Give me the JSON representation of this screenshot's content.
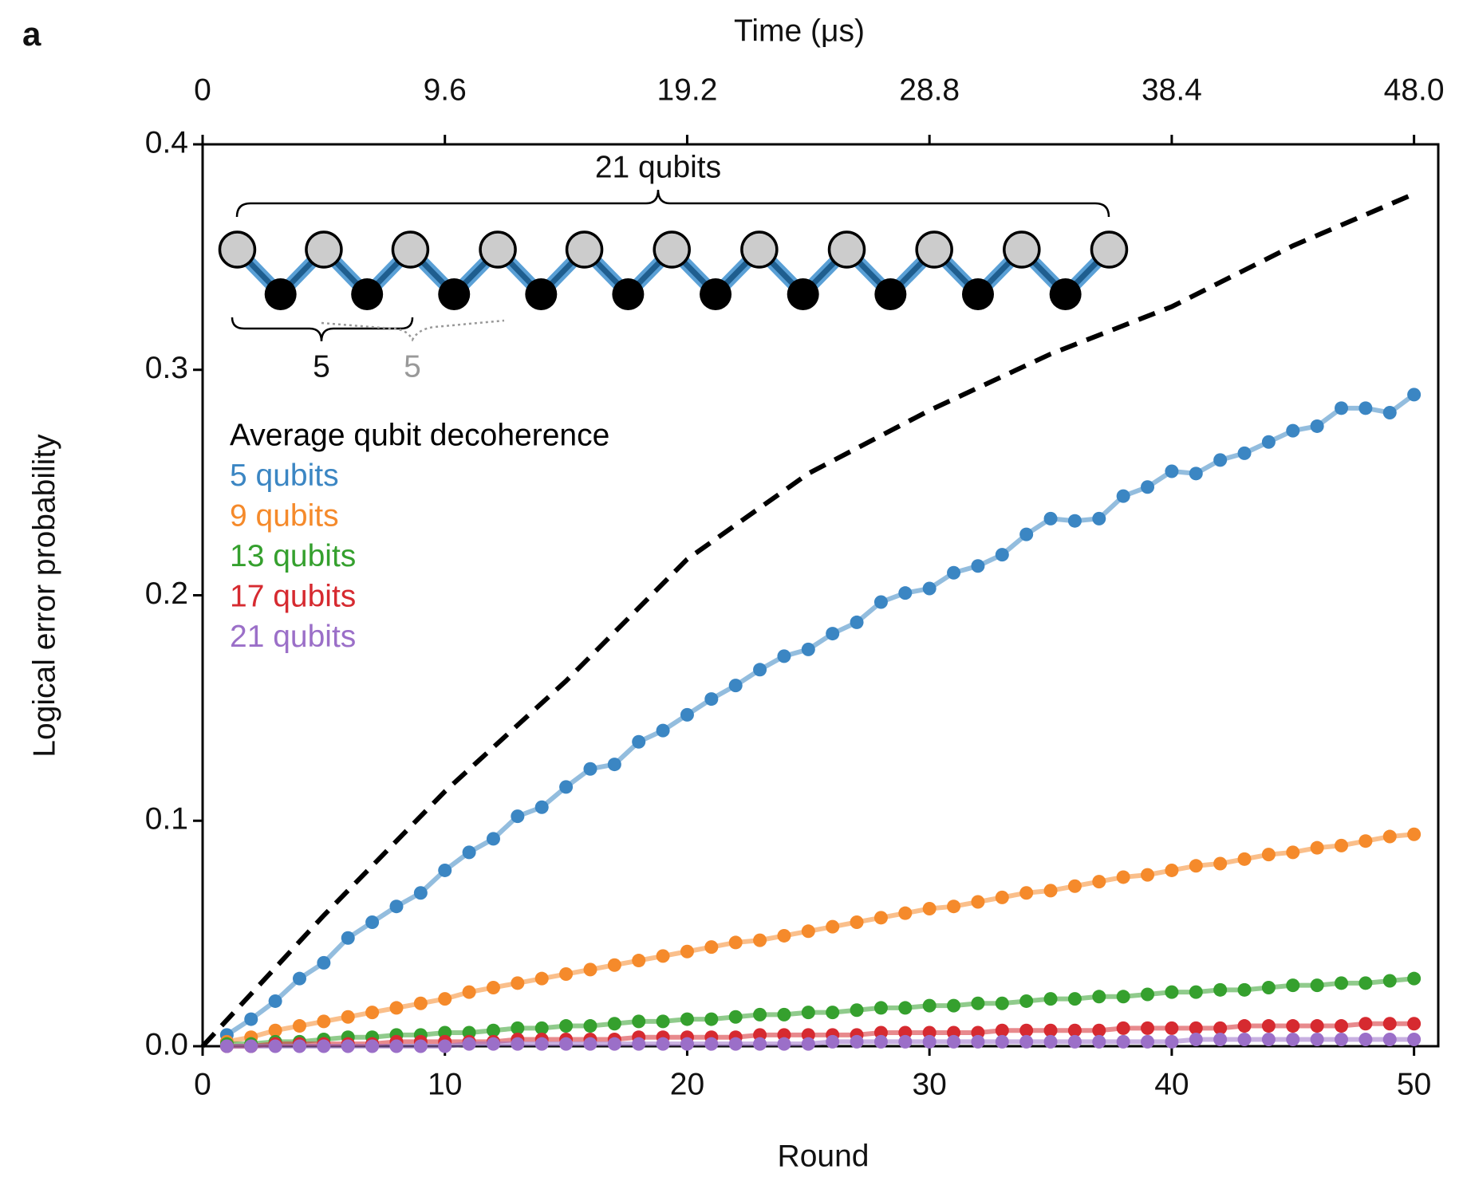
{
  "chart_data": {
    "type": "scatter",
    "panel_label": "a",
    "top_axis_label": "Time (μs)",
    "x_label": "Round",
    "y_label": "Logical error probability",
    "chain_label": "21 qubits",
    "sub_labels": [
      "5",
      "5"
    ],
    "xlim": [
      0,
      51
    ],
    "xticks": [
      0,
      10,
      20,
      30,
      40,
      50
    ],
    "x2lim": [
      0,
      48.96
    ],
    "x2ticks": [
      0,
      9.6,
      19.2,
      28.8,
      38.4,
      {
        "value": 48,
        "label": "48.0"
      }
    ],
    "ylim": [
      0,
      0.4
    ],
    "yticks": [
      {
        "value": 0,
        "label": "0.0"
      },
      0.1,
      0.2,
      0.3,
      0.4
    ],
    "x": [
      1,
      2,
      3,
      4,
      5,
      6,
      7,
      8,
      9,
      10,
      11,
      12,
      13,
      14,
      15,
      16,
      17,
      18,
      19,
      20,
      21,
      22,
      23,
      24,
      25,
      26,
      27,
      28,
      29,
      30,
      31,
      32,
      33,
      34,
      35,
      36,
      37,
      38,
      39,
      40,
      41,
      42,
      43,
      44,
      45,
      46,
      47,
      48,
      49,
      50
    ],
    "series": [
      {
        "name": "5 qubits",
        "color": "#3b86c3",
        "values": [
          0.005,
          0.012,
          0.02,
          0.03,
          0.037,
          0.048,
          0.055,
          0.062,
          0.068,
          0.078,
          0.086,
          0.092,
          0.102,
          0.106,
          0.115,
          0.123,
          0.125,
          0.135,
          0.14,
          0.147,
          0.154,
          0.16,
          0.167,
          0.173,
          0.176,
          0.183,
          0.188,
          0.197,
          0.201,
          0.203,
          0.21,
          0.213,
          0.218,
          0.227,
          0.234,
          0.233,
          0.234,
          0.244,
          0.248,
          0.255,
          0.254,
          0.26,
          0.263,
          0.268,
          0.273,
          0.275,
          0.283,
          0.283,
          0.281,
          0.289
        ]
      },
      {
        "name": "9 qubits",
        "color": "#f58a2b",
        "values": [
          0.002,
          0.004,
          0.007,
          0.009,
          0.011,
          0.013,
          0.015,
          0.017,
          0.019,
          0.021,
          0.024,
          0.026,
          0.028,
          0.03,
          0.032,
          0.034,
          0.036,
          0.038,
          0.04,
          0.042,
          0.044,
          0.046,
          0.047,
          0.049,
          0.051,
          0.053,
          0.055,
          0.057,
          0.059,
          0.061,
          0.062,
          0.064,
          0.066,
          0.068,
          0.069,
          0.071,
          0.073,
          0.075,
          0.076,
          0.078,
          0.08,
          0.081,
          0.083,
          0.085,
          0.086,
          0.088,
          0.089,
          0.091,
          0.093,
          0.094
        ]
      },
      {
        "name": "13 qubits",
        "color": "#35a02e",
        "values": [
          0.001,
          0.001,
          0.002,
          0.002,
          0.003,
          0.004,
          0.004,
          0.005,
          0.005,
          0.006,
          0.006,
          0.007,
          0.008,
          0.008,
          0.009,
          0.009,
          0.01,
          0.011,
          0.011,
          0.012,
          0.012,
          0.013,
          0.014,
          0.014,
          0.015,
          0.015,
          0.016,
          0.017,
          0.017,
          0.018,
          0.018,
          0.019,
          0.019,
          0.02,
          0.021,
          0.021,
          0.022,
          0.022,
          0.023,
          0.024,
          0.024,
          0.025,
          0.025,
          0.026,
          0.027,
          0.027,
          0.028,
          0.028,
          0.029,
          0.03
        ]
      },
      {
        "name": "17 qubits",
        "color": "#d62a30",
        "values": [
          0,
          0,
          0.001,
          0.001,
          0.001,
          0.001,
          0.001,
          0.002,
          0.002,
          0.002,
          0.002,
          0.002,
          0.003,
          0.003,
          0.003,
          0.003,
          0.003,
          0.004,
          0.004,
          0.004,
          0.004,
          0.004,
          0.005,
          0.005,
          0.005,
          0.005,
          0.005,
          0.006,
          0.006,
          0.006,
          0.006,
          0.006,
          0.007,
          0.007,
          0.007,
          0.007,
          0.007,
          0.008,
          0.008,
          0.008,
          0.008,
          0.008,
          0.009,
          0.009,
          0.009,
          0.009,
          0.009,
          0.01,
          0.01,
          0.01
        ]
      },
      {
        "name": "21 qubits",
        "color": "#9b6fc8",
        "values": [
          0,
          0,
          0,
          0,
          0,
          0,
          0,
          0,
          0,
          0,
          0.001,
          0.001,
          0.001,
          0.001,
          0.001,
          0.001,
          0.001,
          0.001,
          0.001,
          0.001,
          0.001,
          0.001,
          0.001,
          0.001,
          0.001,
          0.002,
          0.002,
          0.002,
          0.002,
          0.002,
          0.002,
          0.002,
          0.002,
          0.002,
          0.002,
          0.002,
          0.002,
          0.002,
          0.002,
          0.002,
          0.003,
          0.003,
          0.003,
          0.003,
          0.003,
          0.003,
          0.003,
          0.003,
          0.003,
          0.003
        ]
      },
      {
        "name": "Average qubit decoherence",
        "color": "#000000",
        "dashed": true,
        "x": [
          0,
          5,
          10,
          15,
          20,
          25,
          30,
          35,
          40,
          45,
          50
        ],
        "values": [
          0,
          0.058,
          0.113,
          0.162,
          0.216,
          0.254,
          0.282,
          0.307,
          0.328,
          0.355,
          0.378
        ]
      }
    ]
  }
}
